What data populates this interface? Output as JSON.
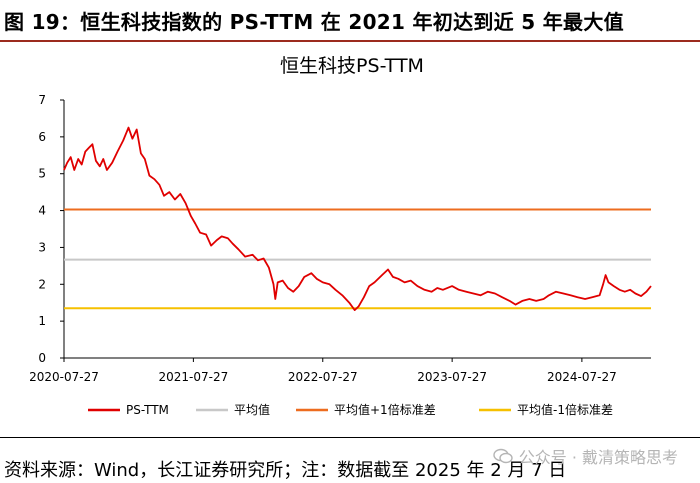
{
  "header": {
    "title": "图 19：恒生科技指数的 PS-TTM 在 2021 年初达到近 5 年最大值"
  },
  "footer": {
    "source": "资料来源：Wind，长江证券研究所；注：数据截至 2025 年 2 月 7 日",
    "watermark": "公众号 · 戴清策略思考"
  },
  "chart_data": {
    "type": "line",
    "title": "恒生科技PS-TTM",
    "xlabel": "",
    "ylabel": "",
    "x_range": [
      "2020-07-27",
      "2025-02-07"
    ],
    "x_ticks": [
      "2020-07-27",
      "2021-07-27",
      "2022-07-27",
      "2023-07-27",
      "2024-07-27"
    ],
    "ylim": [
      0,
      7
    ],
    "y_ticks": [
      "0",
      "1",
      "2",
      "3",
      "4",
      "5",
      "6",
      "7"
    ],
    "grid": false,
    "legend_position": "bottom",
    "series": [
      {
        "name": "PS-TTM",
        "color": "#e00000",
        "points": [
          [
            "2020-07-27",
            5.1
          ],
          [
            "2020-08-05",
            5.3
          ],
          [
            "2020-08-15",
            5.45
          ],
          [
            "2020-08-25",
            5.1
          ],
          [
            "2020-09-05",
            5.4
          ],
          [
            "2020-09-15",
            5.25
          ],
          [
            "2020-09-25",
            5.6
          ],
          [
            "2020-10-05",
            5.7
          ],
          [
            "2020-10-15",
            5.8
          ],
          [
            "2020-10-25",
            5.35
          ],
          [
            "2020-11-05",
            5.2
          ],
          [
            "2020-11-15",
            5.4
          ],
          [
            "2020-11-25",
            5.1
          ],
          [
            "2020-12-10",
            5.3
          ],
          [
            "2020-12-25",
            5.6
          ],
          [
            "2021-01-10",
            5.9
          ],
          [
            "2021-01-25",
            6.25
          ],
          [
            "2021-02-05",
            5.95
          ],
          [
            "2021-02-17",
            6.2
          ],
          [
            "2021-03-01",
            5.55
          ],
          [
            "2021-03-12",
            5.4
          ],
          [
            "2021-03-25",
            4.95
          ],
          [
            "2021-04-08",
            4.85
          ],
          [
            "2021-04-22",
            4.7
          ],
          [
            "2021-05-05",
            4.4
          ],
          [
            "2021-05-20",
            4.5
          ],
          [
            "2021-06-05",
            4.3
          ],
          [
            "2021-06-20",
            4.45
          ],
          [
            "2021-07-05",
            4.2
          ],
          [
            "2021-07-20",
            3.85
          ],
          [
            "2021-08-01",
            3.65
          ],
          [
            "2021-08-15",
            3.4
          ],
          [
            "2021-09-01",
            3.35
          ],
          [
            "2021-09-15",
            3.05
          ],
          [
            "2021-10-01",
            3.2
          ],
          [
            "2021-10-15",
            3.3
          ],
          [
            "2021-11-01",
            3.25
          ],
          [
            "2021-11-15",
            3.1
          ],
          [
            "2021-12-01",
            2.95
          ],
          [
            "2021-12-20",
            2.75
          ],
          [
            "2022-01-10",
            2.8
          ],
          [
            "2022-01-25",
            2.65
          ],
          [
            "2022-02-10",
            2.7
          ],
          [
            "2022-02-25",
            2.45
          ],
          [
            "2022-03-10",
            2.0
          ],
          [
            "2022-03-15",
            1.6
          ],
          [
            "2022-03-22",
            2.05
          ],
          [
            "2022-04-05",
            2.1
          ],
          [
            "2022-04-20",
            1.9
          ],
          [
            "2022-05-05",
            1.8
          ],
          [
            "2022-05-20",
            1.95
          ],
          [
            "2022-06-05",
            2.2
          ],
          [
            "2022-06-25",
            2.3
          ],
          [
            "2022-07-10",
            2.15
          ],
          [
            "2022-07-27",
            2.05
          ],
          [
            "2022-08-15",
            2.0
          ],
          [
            "2022-09-01",
            1.85
          ],
          [
            "2022-09-20",
            1.7
          ],
          [
            "2022-10-10",
            1.5
          ],
          [
            "2022-10-25",
            1.3
          ],
          [
            "2022-11-05",
            1.4
          ],
          [
            "2022-11-20",
            1.65
          ],
          [
            "2022-12-05",
            1.95
          ],
          [
            "2022-12-20",
            2.05
          ],
          [
            "2023-01-10",
            2.25
          ],
          [
            "2023-01-27",
            2.4
          ],
          [
            "2023-02-10",
            2.2
          ],
          [
            "2023-02-25",
            2.15
          ],
          [
            "2023-03-15",
            2.05
          ],
          [
            "2023-04-01",
            2.1
          ],
          [
            "2023-04-20",
            1.95
          ],
          [
            "2023-05-10",
            1.85
          ],
          [
            "2023-05-30",
            1.8
          ],
          [
            "2023-06-15",
            1.9
          ],
          [
            "2023-07-01",
            1.85
          ],
          [
            "2023-07-27",
            1.95
          ],
          [
            "2023-08-15",
            1.85
          ],
          [
            "2023-09-05",
            1.8
          ],
          [
            "2023-09-25",
            1.75
          ],
          [
            "2023-10-15",
            1.7
          ],
          [
            "2023-11-05",
            1.8
          ],
          [
            "2023-11-25",
            1.75
          ],
          [
            "2023-12-15",
            1.65
          ],
          [
            "2024-01-05",
            1.55
          ],
          [
            "2024-01-22",
            1.45
          ],
          [
            "2024-02-10",
            1.55
          ],
          [
            "2024-03-01",
            1.6
          ],
          [
            "2024-03-20",
            1.55
          ],
          [
            "2024-04-10",
            1.6
          ],
          [
            "2024-04-25",
            1.7
          ],
          [
            "2024-05-15",
            1.8
          ],
          [
            "2024-06-05",
            1.75
          ],
          [
            "2024-06-25",
            1.7
          ],
          [
            "2024-07-15",
            1.65
          ],
          [
            "2024-08-05",
            1.6
          ],
          [
            "2024-08-25",
            1.65
          ],
          [
            "2024-09-15",
            1.7
          ],
          [
            "2024-09-25",
            2.0
          ],
          [
            "2024-10-02",
            2.25
          ],
          [
            "2024-10-10",
            2.05
          ],
          [
            "2024-10-25",
            1.95
          ],
          [
            "2024-11-10",
            1.85
          ],
          [
            "2024-11-25",
            1.8
          ],
          [
            "2024-12-10",
            1.85
          ],
          [
            "2024-12-25",
            1.75
          ],
          [
            "2025-01-10",
            1.68
          ],
          [
            "2025-01-25",
            1.8
          ],
          [
            "2025-02-07",
            1.95
          ]
        ]
      },
      {
        "name": "平均值",
        "color": "#c8c8c8",
        "value": 2.67
      },
      {
        "name": "平均值+1倍标准差",
        "color": "#ed6c1f",
        "value": 4.03
      },
      {
        "name": "平均值-1倍标准差",
        "color": "#f6c000",
        "value": 1.35
      }
    ]
  }
}
